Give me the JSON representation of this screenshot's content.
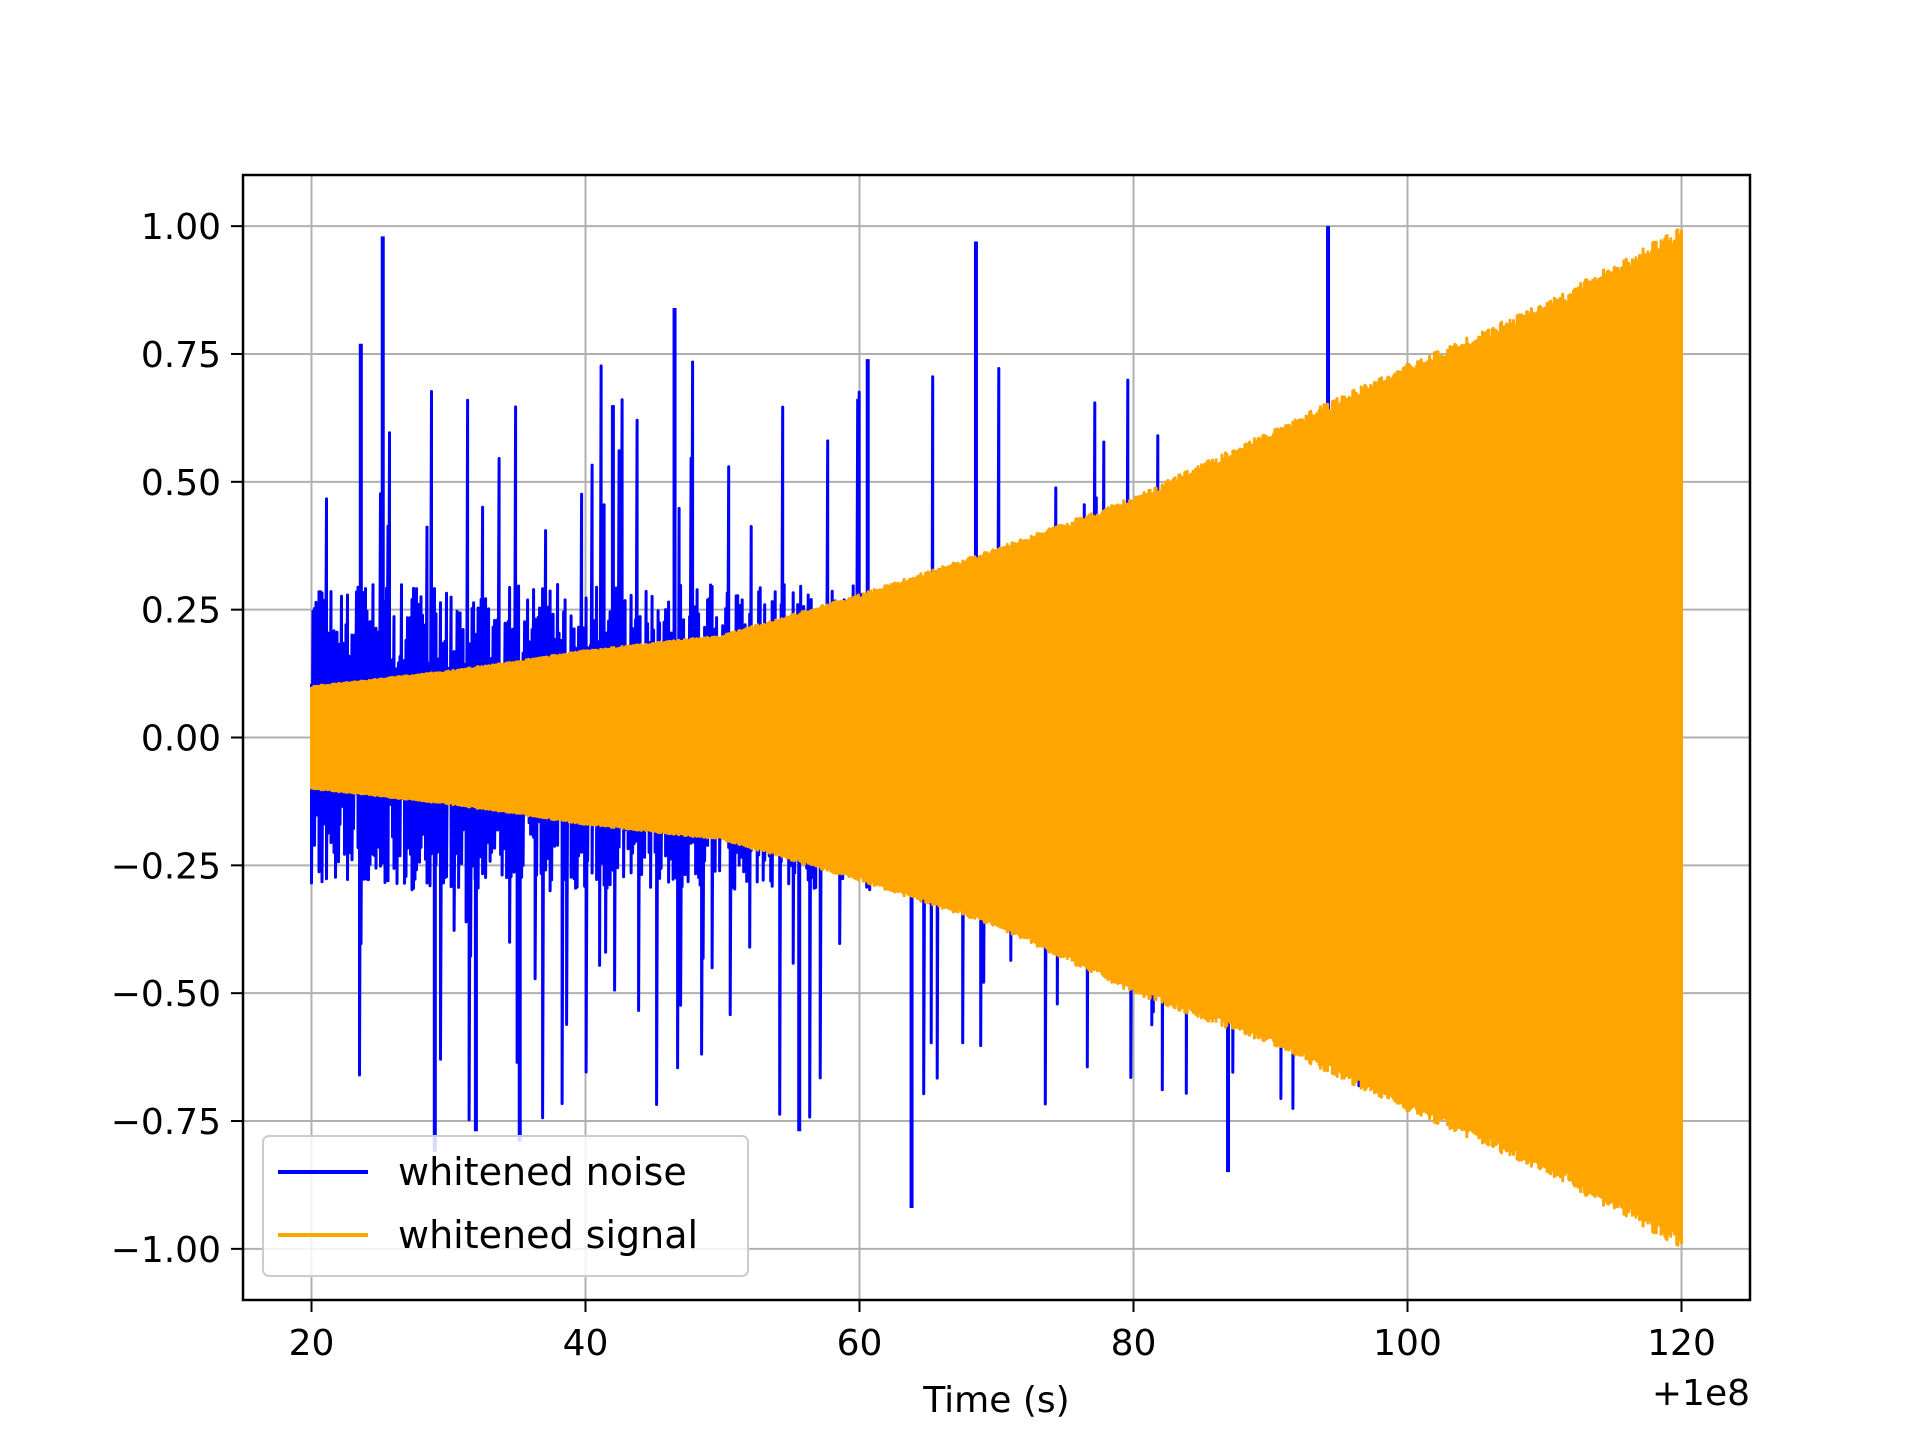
{
  "chart_data": {
    "type": "line",
    "xlabel": "Time (s)",
    "ylabel": "",
    "title": "",
    "x_offset_label": "+1e8",
    "xlim": [
      15,
      125
    ],
    "ylim": [
      -1.1,
      1.1
    ],
    "xticks": [
      20,
      40,
      60,
      80,
      100,
      120
    ],
    "yticks": [
      1.0,
      0.75,
      0.5,
      0.25,
      0.0,
      -0.25,
      -0.5,
      -0.75,
      -1.0
    ],
    "xtick_labels": [
      "20",
      "40",
      "60",
      "80",
      "100",
      "120"
    ],
    "ytick_labels": [
      "1.00",
      "0.75",
      "0.50",
      "0.25",
      "0.00",
      "−0.25",
      "−0.50",
      "−0.75",
      "−1.00"
    ],
    "grid": true,
    "legend_position": "lower-left",
    "series": [
      {
        "name": "whitened noise",
        "color": "#0000ff",
        "envelope": {
          "t": [
            20,
            30,
            40,
            50,
            60,
            70,
            80,
            90,
            100,
            110,
            120
          ],
          "upper": [
            0.3,
            0.3,
            0.3,
            0.3,
            0.3,
            0.3,
            0.3,
            0.3,
            0.3,
            0.3,
            0.3
          ],
          "lower": [
            -0.3,
            -0.3,
            -0.3,
            -0.3,
            -0.3,
            -0.3,
            -0.3,
            -0.3,
            -0.3,
            -0.3,
            -0.3
          ]
        },
        "spikes": [
          {
            "x": 25.2,
            "y": 0.98
          },
          {
            "x": 63.8,
            "y": -0.92
          },
          {
            "x": 68.5,
            "y": 0.97
          },
          {
            "x": 94.2,
            "y": 1.0
          },
          {
            "x": 23.6,
            "y": 0.77
          },
          {
            "x": 46.5,
            "y": 0.84
          },
          {
            "x": 42.0,
            "y": 0.65
          },
          {
            "x": 60.6,
            "y": 0.74
          },
          {
            "x": 55.6,
            "y": -0.77
          },
          {
            "x": 86.9,
            "y": -0.85
          },
          {
            "x": 29.0,
            "y": -0.81
          },
          {
            "x": 32.0,
            "y": -0.77
          },
          {
            "x": 35.2,
            "y": -0.79
          }
        ]
      },
      {
        "name": "whitened signal",
        "color": "#ffa500",
        "envelope": {
          "t": [
            20,
            30,
            40,
            50,
            60,
            70,
            80,
            90,
            100,
            110,
            120
          ],
          "upper": [
            0.1,
            0.13,
            0.17,
            0.2,
            0.28,
            0.37,
            0.47,
            0.6,
            0.73,
            0.85,
            1.0
          ],
          "lower": [
            -0.1,
            -0.13,
            -0.17,
            -0.2,
            -0.28,
            -0.37,
            -0.5,
            -0.6,
            -0.73,
            -0.85,
            -1.0
          ]
        }
      }
    ]
  }
}
